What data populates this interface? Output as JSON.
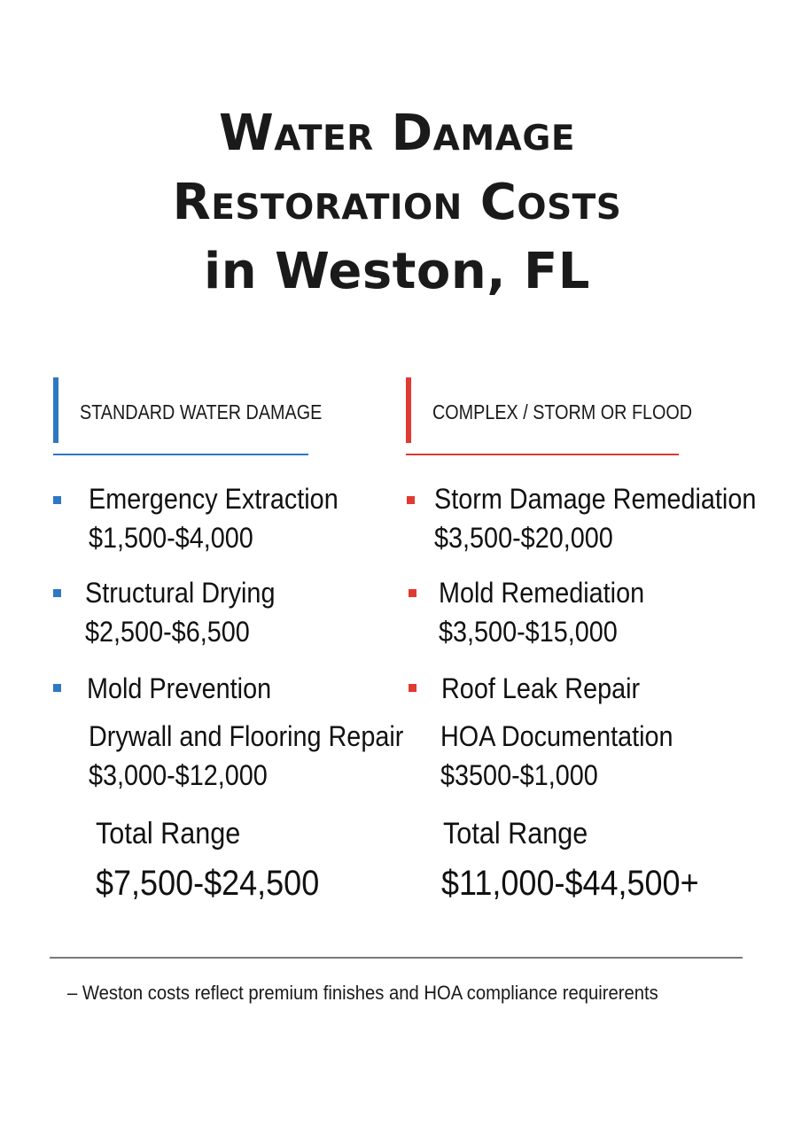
{
  "title": {
    "line1": "Water Damage",
    "line2": "Restoration Costs",
    "line3": "in Weston, FL"
  },
  "colors": {
    "standard_accent": "#2e78c4",
    "complex_accent": "#e03a32"
  },
  "standard": {
    "header": "STANDARD WATER DAMAGE",
    "items": [
      {
        "name": "Emergency Extraction",
        "price": "$1,500-$4,000"
      },
      {
        "name": "Structural Drying",
        "price": "$2,500-$6,500"
      },
      {
        "name": "Mold Prevention"
      },
      {
        "name": "Drywall and Flooring Repair",
        "price": "$3,000-$12,000"
      }
    ],
    "total_label": "Total Range",
    "total_value": "$7,500-$24,500"
  },
  "complex": {
    "header": "COMPLEX / STORM OR FLOOD",
    "items": [
      {
        "name": "Storm Damage Remediation",
        "price": "$3,500-$20,000"
      },
      {
        "name": "Mold Remediation",
        "price": "$3,500-$15,000"
      },
      {
        "name": "Roof Leak Repair"
      },
      {
        "name": "HOA Documentation",
        "price": "$3500-$1,000"
      }
    ],
    "total_label": "Total Range",
    "total_value": "$11,000-$44,500+"
  },
  "footnote": "– Weston costs reflect premium finishes and HOA compliance requirerents"
}
